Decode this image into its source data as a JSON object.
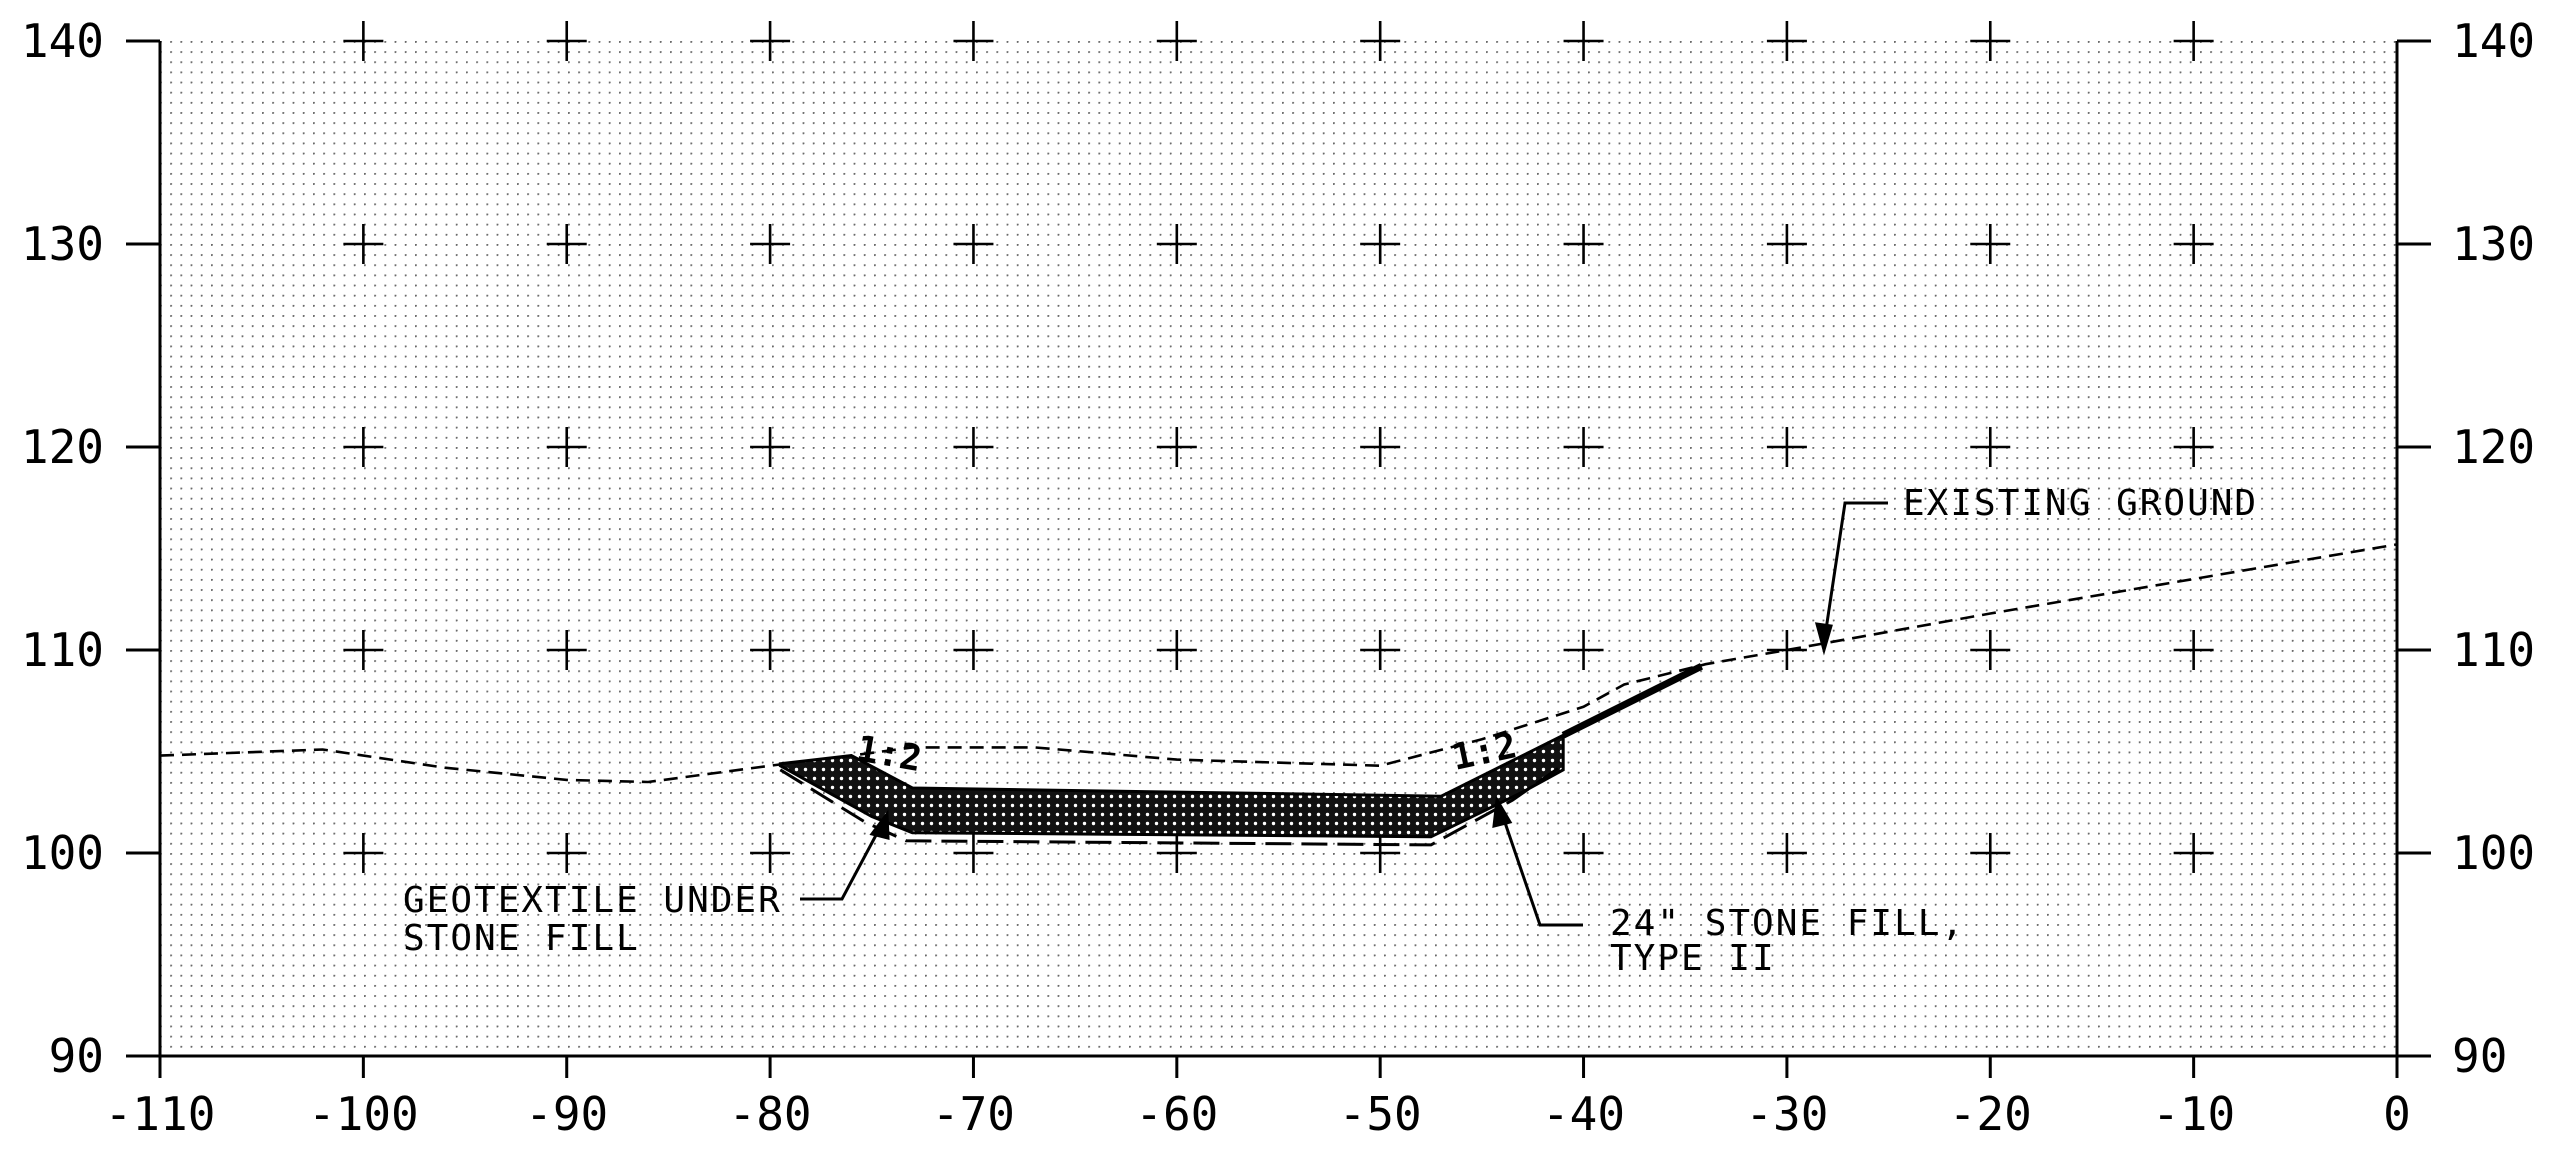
{
  "drawing": {
    "x_range": [
      -110,
      0
    ],
    "y_range": [
      90,
      140
    ],
    "x_ticks": [
      -110,
      -100,
      -90,
      -80,
      -70,
      -60,
      -50,
      -40,
      -30,
      -20,
      -10,
      0
    ],
    "y_ticks": [
      90,
      100,
      110,
      120,
      130,
      140
    ],
    "x_tick_labels": [
      "-110",
      "-100",
      "-90",
      "-80",
      "-70",
      "-60",
      "-50",
      "-40",
      "-30",
      "-20",
      "-10",
      "0"
    ],
    "y_tick_labels_left": [
      "90",
      "100",
      "110",
      "120",
      "130",
      "140"
    ],
    "y_tick_labels_right": [
      "90",
      "100",
      "110",
      "120",
      "130",
      "140"
    ],
    "existing_ground": [
      [
        -110,
        104.8
      ],
      [
        -102,
        105.1
      ],
      [
        -96,
        104.2
      ],
      [
        -90,
        103.6
      ],
      [
        -86,
        103.5
      ],
      [
        -80,
        104.3
      ],
      [
        -76,
        104.8
      ],
      [
        -73,
        105.2
      ],
      [
        -67,
        105.2
      ],
      [
        -60,
        104.6
      ],
      [
        -50,
        104.3
      ],
      [
        -45,
        105.6
      ],
      [
        -40,
        107.2
      ],
      [
        -38,
        108.3
      ],
      [
        -36,
        108.8
      ],
      [
        -34,
        109.3
      ],
      [
        -30,
        110.0
      ],
      [
        -20,
        111.8
      ],
      [
        -10,
        113.5
      ],
      [
        0,
        115.2
      ]
    ],
    "stone_fill": [
      [
        -79.5,
        104.4
      ],
      [
        -76,
        104.8
      ],
      [
        -73,
        103.2
      ],
      [
        -47,
        102.8
      ],
      [
        -41,
        105.8
      ],
      [
        -41,
        104.1
      ],
      [
        -43,
        103.0
      ],
      [
        -47.5,
        100.8
      ],
      [
        -73,
        101.0
      ],
      [
        -75,
        101.8
      ],
      [
        -79.5,
        104.3
      ]
    ],
    "geotextile": [
      [
        -79.5,
        104.1
      ],
      [
        -75.3,
        101.5
      ],
      [
        -73.3,
        100.6
      ],
      [
        -47.5,
        100.4
      ],
      [
        -43.5,
        102.6
      ],
      [
        -41.2,
        104.2
      ]
    ],
    "proposed_slope": [
      [
        -41,
        105.8
      ],
      [
        -34.2,
        109.2
      ]
    ],
    "notes": {
      "existing_ground": "EXISTING GROUND",
      "geotextile_line1": "GEOTEXTILE UNDER",
      "geotextile_line2": "STONE FILL",
      "stone_line1": "24\" STONE FILL,",
      "stone_line2": "TYPE II",
      "slope_left": "1:2",
      "slope_right": "1:2"
    }
  }
}
